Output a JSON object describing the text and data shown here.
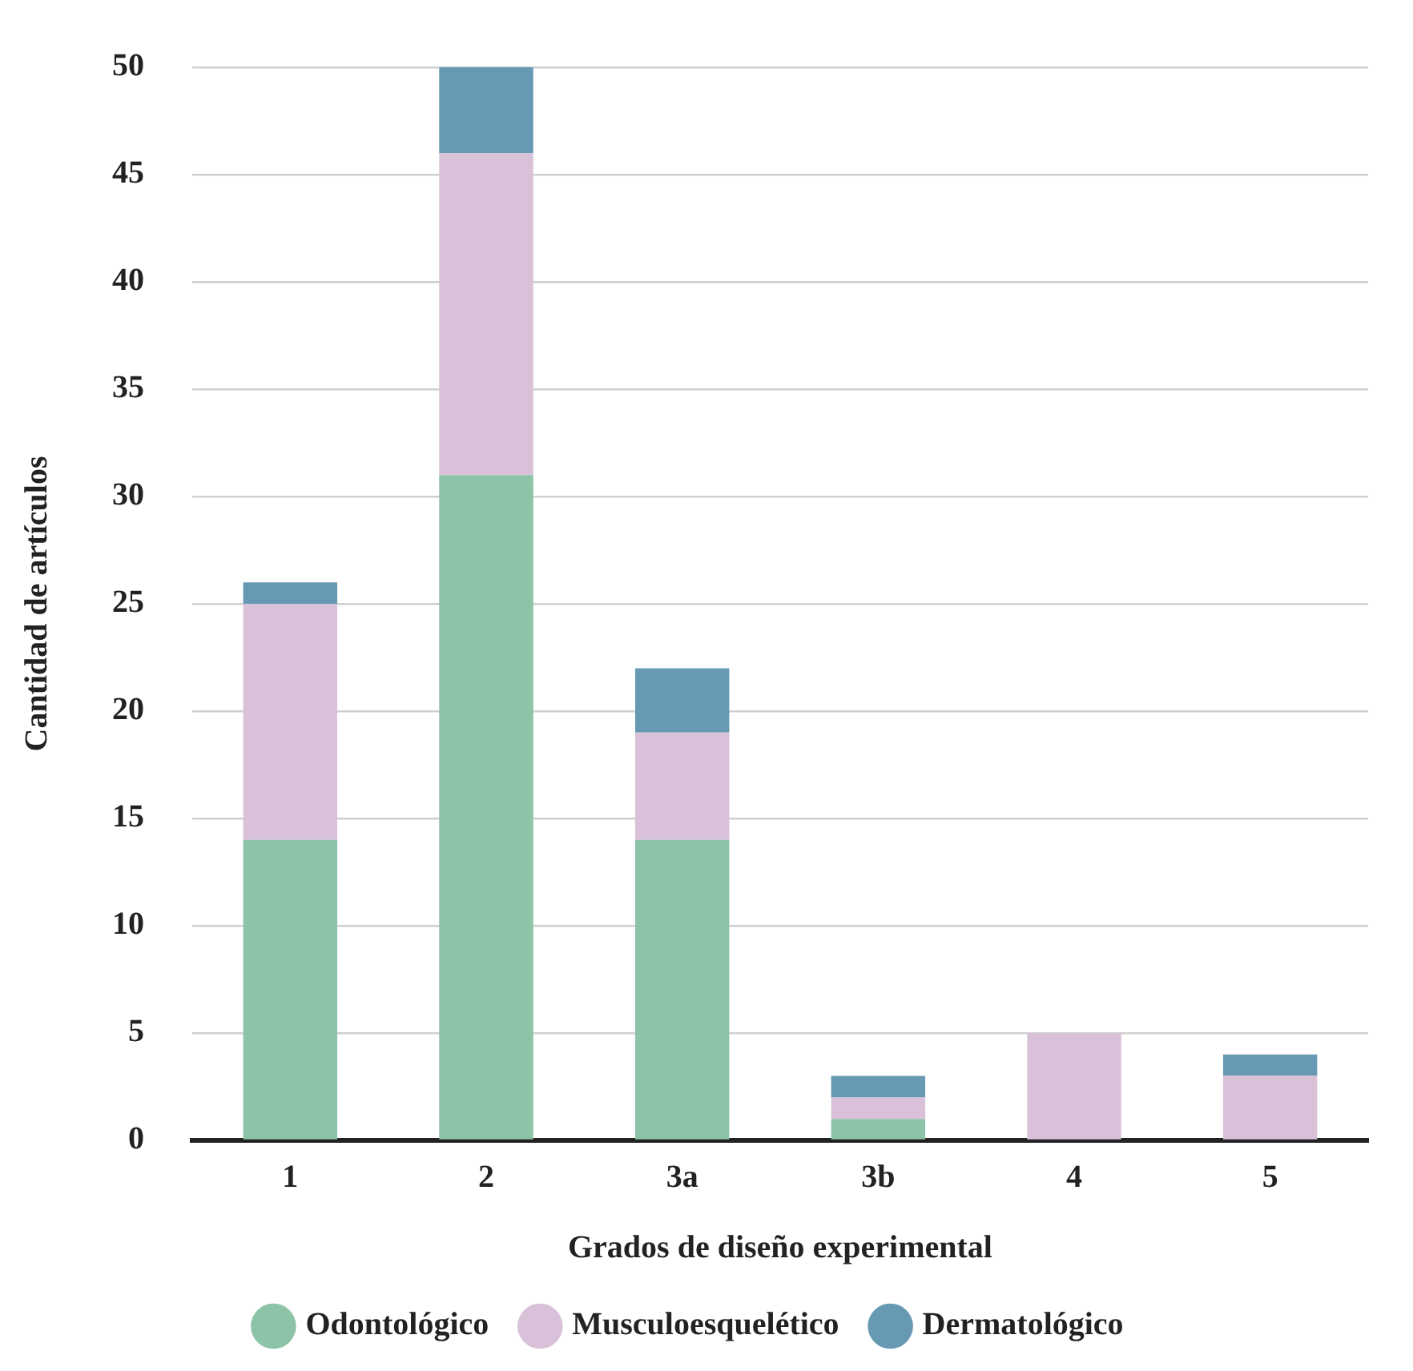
{
  "chart_data": {
    "type": "bar",
    "stacked": true,
    "xlabel": "Grados de diseño experimental",
    "ylabel": "Cantidad de artículos",
    "categories": [
      "1",
      "2",
      "3a",
      "3b",
      "4",
      "5"
    ],
    "series": [
      {
        "name": "Odontológico",
        "color": "#8dc3a7",
        "values": [
          14,
          31,
          14,
          1,
          0,
          0
        ]
      },
      {
        "name": "Musculoesquelético",
        "color": "#d9c2d9",
        "values": [
          11,
          15,
          5,
          1,
          5,
          3
        ]
      },
      {
        "name": "Dermatológico",
        "color": "#6899b3",
        "values": [
          1,
          4,
          3,
          1,
          0,
          1
        ]
      }
    ],
    "ylim": [
      0,
      50
    ],
    "yticks": [
      0,
      5,
      10,
      15,
      20,
      25,
      30,
      35,
      40,
      45,
      50
    ],
    "grid": "y",
    "legend": "bottom"
  }
}
